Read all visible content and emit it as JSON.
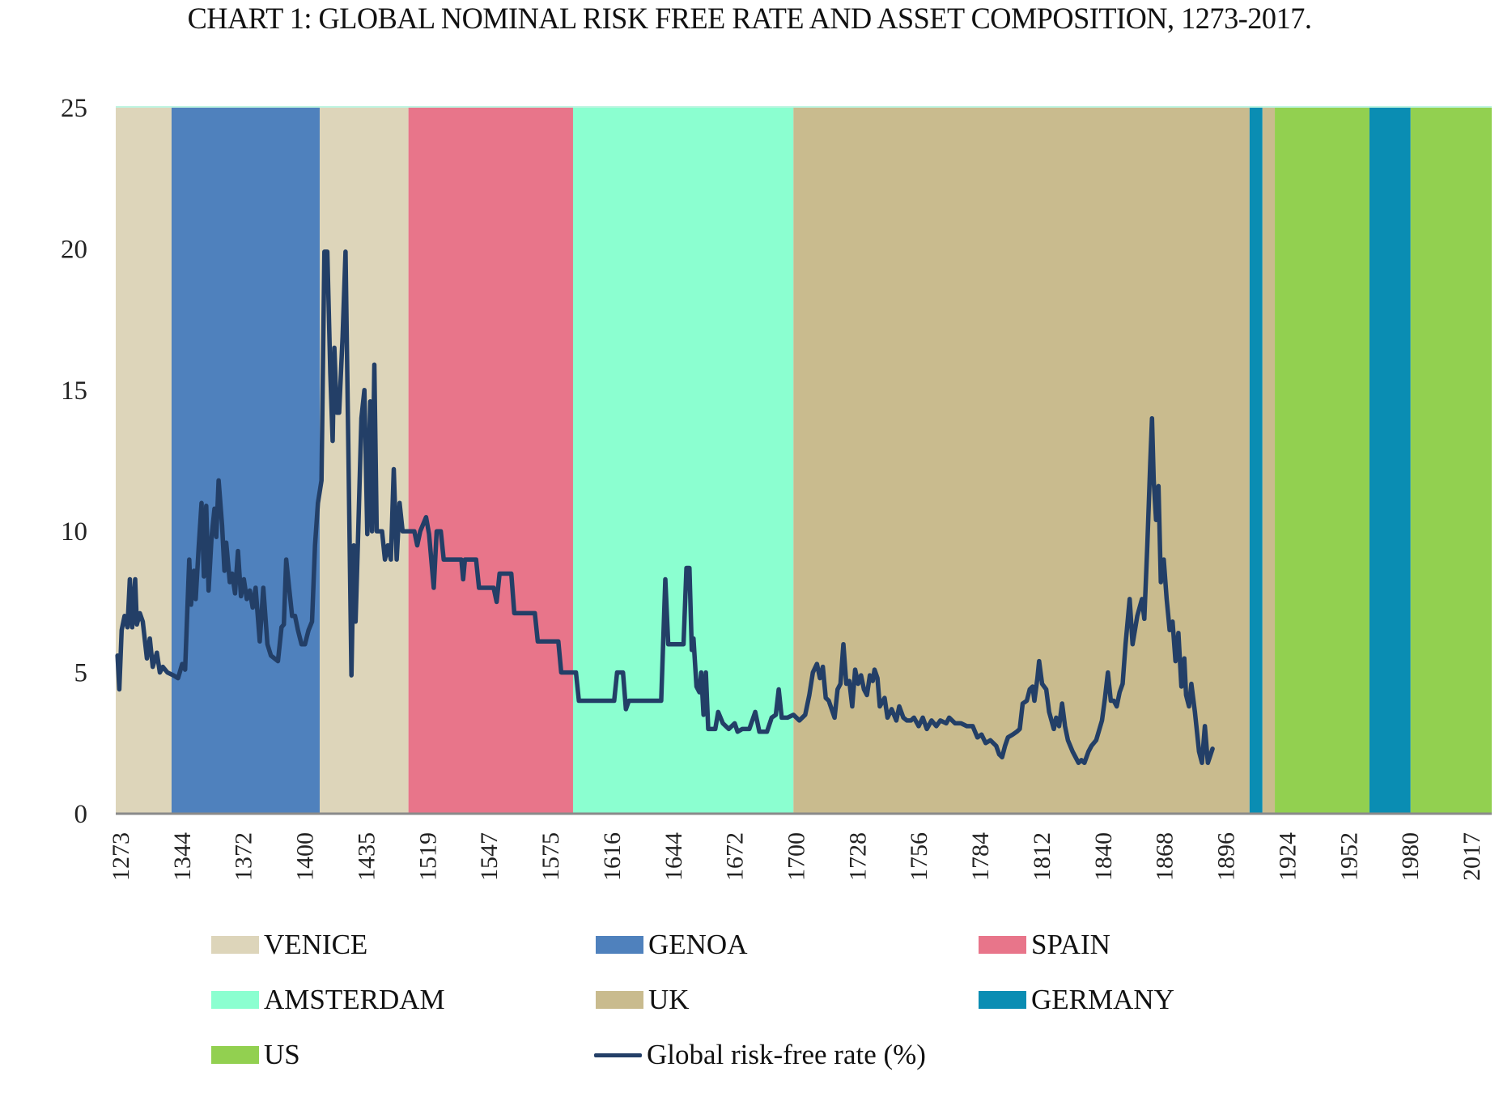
{
  "chart_data": {
    "type": "line",
    "title": "CHART 1: GLOBAL NOMINAL RISK FREE RATE AND ASSET COMPOSITION, 1273-2017.",
    "xlabel": "",
    "ylabel": "",
    "ylim": [
      0,
      25
    ],
    "yticks": [
      0,
      5,
      10,
      15,
      20,
      25
    ],
    "xtick_labels": [
      "1273",
      "1344",
      "1372",
      "1400",
      "1435",
      "1519",
      "1547",
      "1575",
      "1616",
      "1644",
      "1672",
      "1700",
      "1728",
      "1756",
      "1784",
      "1812",
      "1840",
      "1868",
      "1896",
      "1924",
      "1952",
      "1980",
      "2017"
    ],
    "x_axis_note": "categorical axis; x values below are positions in tick-index units (tick 0 = 1273)",
    "xlim_index": [
      -0.08,
      23.33
    ],
    "grid": false,
    "legend_position": "bottom",
    "regimes": [
      {
        "name": "VENICE",
        "color": "#DDD5BA",
        "from": -0.08,
        "to": 0.87
      },
      {
        "name": "GENOA",
        "color": "#4F81BD",
        "from": 0.87,
        "to": 3.39
      },
      {
        "name": "VENICE",
        "color": "#DDD5BA",
        "from": 3.39,
        "to": 4.9
      },
      {
        "name": "SPAIN",
        "color": "#E8758A",
        "from": 4.9,
        "to": 7.7
      },
      {
        "name": "AMSTERDAM",
        "color": "#8BFFD0",
        "from": 7.7,
        "to": 11.45
      },
      {
        "name": "UK",
        "color": "#C9BB8E",
        "from": 11.45,
        "to": 19.21
      },
      {
        "name": "GERMANY",
        "color": "#0A8DB3",
        "from": 19.21,
        "to": 19.43
      },
      {
        "name": "UK",
        "color": "#C9BB8E",
        "from": 19.43,
        "to": 19.64
      },
      {
        "name": "US",
        "color": "#92D050",
        "from": 19.64,
        "to": 21.25
      },
      {
        "name": "GERMANY",
        "color": "#0A8DB3",
        "from": 21.25,
        "to": 21.95
      },
      {
        "name": "US",
        "color": "#92D050",
        "from": 21.95,
        "to": 23.33
      }
    ],
    "series": [
      {
        "name": "Global risk-free rate (%)",
        "color": "#233F67",
        "points": [
          [
            -0.05,
            5.6
          ],
          [
            -0.02,
            4.4
          ],
          [
            0.02,
            6.5
          ],
          [
            0.07,
            7.0
          ],
          [
            0.12,
            6.6
          ],
          [
            0.16,
            8.3
          ],
          [
            0.2,
            6.6
          ],
          [
            0.25,
            8.3
          ],
          [
            0.28,
            6.7
          ],
          [
            0.33,
            7.1
          ],
          [
            0.38,
            6.8
          ],
          [
            0.45,
            5.5
          ],
          [
            0.5,
            6.2
          ],
          [
            0.55,
            5.2
          ],
          [
            0.62,
            5.7
          ],
          [
            0.67,
            5.0
          ],
          [
            0.72,
            5.2
          ],
          [
            0.8,
            5.0
          ],
          [
            0.9,
            4.9
          ],
          [
            0.98,
            4.8
          ],
          [
            1.05,
            5.3
          ],
          [
            1.1,
            5.1
          ],
          [
            1.17,
            9.0
          ],
          [
            1.2,
            7.4
          ],
          [
            1.25,
            8.6
          ],
          [
            1.28,
            7.6
          ],
          [
            1.33,
            9.4
          ],
          [
            1.38,
            11.0
          ],
          [
            1.42,
            8.4
          ],
          [
            1.46,
            10.9
          ],
          [
            1.5,
            7.9
          ],
          [
            1.55,
            9.8
          ],
          [
            1.6,
            10.8
          ],
          [
            1.63,
            9.8
          ],
          [
            1.67,
            11.8
          ],
          [
            1.73,
            10.2
          ],
          [
            1.77,
            8.6
          ],
          [
            1.8,
            9.6
          ],
          [
            1.86,
            8.2
          ],
          [
            1.9,
            8.5
          ],
          [
            1.95,
            7.8
          ],
          [
            2.0,
            9.3
          ],
          [
            2.05,
            7.7
          ],
          [
            2.1,
            8.3
          ],
          [
            2.15,
            7.6
          ],
          [
            2.2,
            7.9
          ],
          [
            2.25,
            7.3
          ],
          [
            2.3,
            8.0
          ],
          [
            2.37,
            6.1
          ],
          [
            2.43,
            8.0
          ],
          [
            2.5,
            6.0
          ],
          [
            2.56,
            5.6
          ],
          [
            2.62,
            5.5
          ],
          [
            2.68,
            5.4
          ],
          [
            2.74,
            6.6
          ],
          [
            2.78,
            6.7
          ],
          [
            2.82,
            9.0
          ],
          [
            2.87,
            8.0
          ],
          [
            2.92,
            7.0
          ],
          [
            2.97,
            7.0
          ],
          [
            3.02,
            6.5
          ],
          [
            3.08,
            6.0
          ],
          [
            3.14,
            6.0
          ],
          [
            3.2,
            6.5
          ],
          [
            3.26,
            6.8
          ],
          [
            3.31,
            9.5
          ],
          [
            3.36,
            11.0
          ],
          [
            3.42,
            11.8
          ],
          [
            3.47,
            19.9
          ],
          [
            3.52,
            19.9
          ],
          [
            3.57,
            15.6
          ],
          [
            3.61,
            13.2
          ],
          [
            3.64,
            16.5
          ],
          [
            3.68,
            14.2
          ],
          [
            3.72,
            14.2
          ],
          [
            3.78,
            16.9
          ],
          [
            3.83,
            19.9
          ],
          [
            3.88,
            12.5
          ],
          [
            3.93,
            4.9
          ],
          [
            3.97,
            9.5
          ],
          [
            4.0,
            6.8
          ],
          [
            4.04,
            9.6
          ],
          [
            4.1,
            14.0
          ],
          [
            4.15,
            15.0
          ],
          [
            4.2,
            9.9
          ],
          [
            4.25,
            14.6
          ],
          [
            4.28,
            10.0
          ],
          [
            4.32,
            15.9
          ],
          [
            4.36,
            10.0
          ],
          [
            4.45,
            10.0
          ],
          [
            4.5,
            9.0
          ],
          [
            4.55,
            9.5
          ],
          [
            4.6,
            9.0
          ],
          [
            4.65,
            12.2
          ],
          [
            4.7,
            9.0
          ],
          [
            4.75,
            11.0
          ],
          [
            4.8,
            10.0
          ],
          [
            4.9,
            10.0
          ],
          [
            5.0,
            10.0
          ],
          [
            5.05,
            9.5
          ],
          [
            5.1,
            10.0
          ],
          [
            5.2,
            10.5
          ],
          [
            5.25,
            9.9
          ],
          [
            5.33,
            8.0
          ],
          [
            5.38,
            10.0
          ],
          [
            5.45,
            10.0
          ],
          [
            5.5,
            9.0
          ],
          [
            5.8,
            9.0
          ],
          [
            5.83,
            8.3
          ],
          [
            5.86,
            9.0
          ],
          [
            6.05,
            9.0
          ],
          [
            6.1,
            8.0
          ],
          [
            6.35,
            8.0
          ],
          [
            6.4,
            7.5
          ],
          [
            6.45,
            8.5
          ],
          [
            6.65,
            8.5
          ],
          [
            6.7,
            7.1
          ],
          [
            7.05,
            7.1
          ],
          [
            7.1,
            6.1
          ],
          [
            7.45,
            6.1
          ],
          [
            7.5,
            5.0
          ],
          [
            7.75,
            5.0
          ],
          [
            7.8,
            4.0
          ],
          [
            8.4,
            4.0
          ],
          [
            8.45,
            5.0
          ],
          [
            8.55,
            5.0
          ],
          [
            8.6,
            3.7
          ],
          [
            8.65,
            4.0
          ],
          [
            9.2,
            4.0
          ],
          [
            9.27,
            8.3
          ],
          [
            9.32,
            6.0
          ],
          [
            9.58,
            6.0
          ],
          [
            9.63,
            8.7
          ],
          [
            9.68,
            8.7
          ],
          [
            9.72,
            5.8
          ],
          [
            9.75,
            6.2
          ],
          [
            9.8,
            4.5
          ],
          [
            9.85,
            4.3
          ],
          [
            9.88,
            5.0
          ],
          [
            9.92,
            3.5
          ],
          [
            9.96,
            5.0
          ],
          [
            10.0,
            3.0
          ],
          [
            10.12,
            3.0
          ],
          [
            10.17,
            3.6
          ],
          [
            10.25,
            3.2
          ],
          [
            10.35,
            3.0
          ],
          [
            10.45,
            3.2
          ],
          [
            10.5,
            2.9
          ],
          [
            10.58,
            3.0
          ],
          [
            10.7,
            3.0
          ],
          [
            10.8,
            3.6
          ],
          [
            10.87,
            2.9
          ],
          [
            11.0,
            2.9
          ],
          [
            11.08,
            3.4
          ],
          [
            11.15,
            3.5
          ],
          [
            11.2,
            4.4
          ],
          [
            11.25,
            3.4
          ],
          [
            11.35,
            3.4
          ],
          [
            11.45,
            3.5
          ],
          [
            11.55,
            3.3
          ],
          [
            11.65,
            3.5
          ],
          [
            11.72,
            4.2
          ],
          [
            11.78,
            5.0
          ],
          [
            11.85,
            5.3
          ],
          [
            11.9,
            4.8
          ],
          [
            11.95,
            5.2
          ],
          [
            12.0,
            4.1
          ],
          [
            12.05,
            4.0
          ],
          [
            12.15,
            3.4
          ],
          [
            12.2,
            4.4
          ],
          [
            12.25,
            4.6
          ],
          [
            12.3,
            6.0
          ],
          [
            12.35,
            4.6
          ],
          [
            12.4,
            4.7
          ],
          [
            12.45,
            3.8
          ],
          [
            12.5,
            5.1
          ],
          [
            12.55,
            4.6
          ],
          [
            12.6,
            4.9
          ],
          [
            12.65,
            4.4
          ],
          [
            12.7,
            4.2
          ],
          [
            12.75,
            4.9
          ],
          [
            12.8,
            4.7
          ],
          [
            12.83,
            5.1
          ],
          [
            12.88,
            4.8
          ],
          [
            12.92,
            3.8
          ],
          [
            13.0,
            4.1
          ],
          [
            13.05,
            3.4
          ],
          [
            13.12,
            3.7
          ],
          [
            13.2,
            3.3
          ],
          [
            13.25,
            3.8
          ],
          [
            13.32,
            3.4
          ],
          [
            13.38,
            3.3
          ],
          [
            13.45,
            3.3
          ],
          [
            13.5,
            3.4
          ],
          [
            13.58,
            3.1
          ],
          [
            13.65,
            3.4
          ],
          [
            13.72,
            3.0
          ],
          [
            13.8,
            3.3
          ],
          [
            13.88,
            3.1
          ],
          [
            13.95,
            3.3
          ],
          [
            14.05,
            3.2
          ],
          [
            14.1,
            3.4
          ],
          [
            14.2,
            3.2
          ],
          [
            14.3,
            3.2
          ],
          [
            14.4,
            3.1
          ],
          [
            14.5,
            3.1
          ],
          [
            14.58,
            2.7
          ],
          [
            14.65,
            2.8
          ],
          [
            14.72,
            2.5
          ],
          [
            14.8,
            2.6
          ],
          [
            14.9,
            2.4
          ],
          [
            14.95,
            2.1
          ],
          [
            15.0,
            2.0
          ],
          [
            15.05,
            2.4
          ],
          [
            15.1,
            2.7
          ],
          [
            15.18,
            2.8
          ],
          [
            15.25,
            2.9
          ],
          [
            15.3,
            3.0
          ],
          [
            15.35,
            3.9
          ],
          [
            15.42,
            4.0
          ],
          [
            15.47,
            4.4
          ],
          [
            15.52,
            4.5
          ],
          [
            15.55,
            4.0
          ],
          [
            15.6,
            4.8
          ],
          [
            15.63,
            5.4
          ],
          [
            15.68,
            4.6
          ],
          [
            15.75,
            4.4
          ],
          [
            15.8,
            3.6
          ],
          [
            15.88,
            3.0
          ],
          [
            15.92,
            3.4
          ],
          [
            15.97,
            3.1
          ],
          [
            16.02,
            3.9
          ],
          [
            16.07,
            3.1
          ],
          [
            16.12,
            2.6
          ],
          [
            16.2,
            2.2
          ],
          [
            16.3,
            1.8
          ],
          [
            16.35,
            1.9
          ],
          [
            16.4,
            1.8
          ],
          [
            16.47,
            2.2
          ],
          [
            16.52,
            2.4
          ],
          [
            16.6,
            2.6
          ],
          [
            16.7,
            3.3
          ],
          [
            16.75,
            4.1
          ],
          [
            16.8,
            5.0
          ],
          [
            16.85,
            4.0
          ],
          [
            16.9,
            4.0
          ],
          [
            16.95,
            3.8
          ],
          [
            17.0,
            4.3
          ],
          [
            17.05,
            4.6
          ],
          [
            17.1,
            6.0
          ],
          [
            17.17,
            7.6
          ],
          [
            17.22,
            6.0
          ],
          [
            17.3,
            7.0
          ],
          [
            17.38,
            7.6
          ],
          [
            17.42,
            6.9
          ],
          [
            17.47,
            9.5
          ],
          [
            17.52,
            12.4
          ],
          [
            17.55,
            14.0
          ],
          [
            17.58,
            11.8
          ],
          [
            17.62,
            10.4
          ],
          [
            17.66,
            11.6
          ],
          [
            17.7,
            8.2
          ],
          [
            17.75,
            9.0
          ],
          [
            17.8,
            7.6
          ],
          [
            17.85,
            6.5
          ],
          [
            17.9,
            6.8
          ],
          [
            17.95,
            5.4
          ],
          [
            18.0,
            6.4
          ],
          [
            18.05,
            4.5
          ],
          [
            18.1,
            5.5
          ],
          [
            18.13,
            4.2
          ],
          [
            18.18,
            3.8
          ],
          [
            18.22,
            4.6
          ],
          [
            18.28,
            3.6
          ],
          [
            18.35,
            2.2
          ],
          [
            18.4,
            1.8
          ],
          [
            18.45,
            3.1
          ],
          [
            18.5,
            1.8
          ],
          [
            18.58,
            2.3
          ]
        ]
      }
    ],
    "legend": [
      {
        "label": "VENICE",
        "color": "#DDD5BA",
        "kind": "swatch"
      },
      {
        "label": "GENOA",
        "color": "#4F81BD",
        "kind": "swatch"
      },
      {
        "label": "SPAIN",
        "color": "#E8758A",
        "kind": "swatch"
      },
      {
        "label": "AMSTERDAM",
        "color": "#8BFFD0",
        "kind": "swatch"
      },
      {
        "label": "UK",
        "color": "#C9BB8E",
        "kind": "swatch"
      },
      {
        "label": "GERMANY",
        "color": "#0A8DB3",
        "kind": "swatch"
      },
      {
        "label": "US",
        "color": "#92D050",
        "kind": "swatch"
      },
      {
        "label": "Global risk-free rate (%)",
        "color": "#233F67",
        "kind": "line"
      }
    ]
  }
}
